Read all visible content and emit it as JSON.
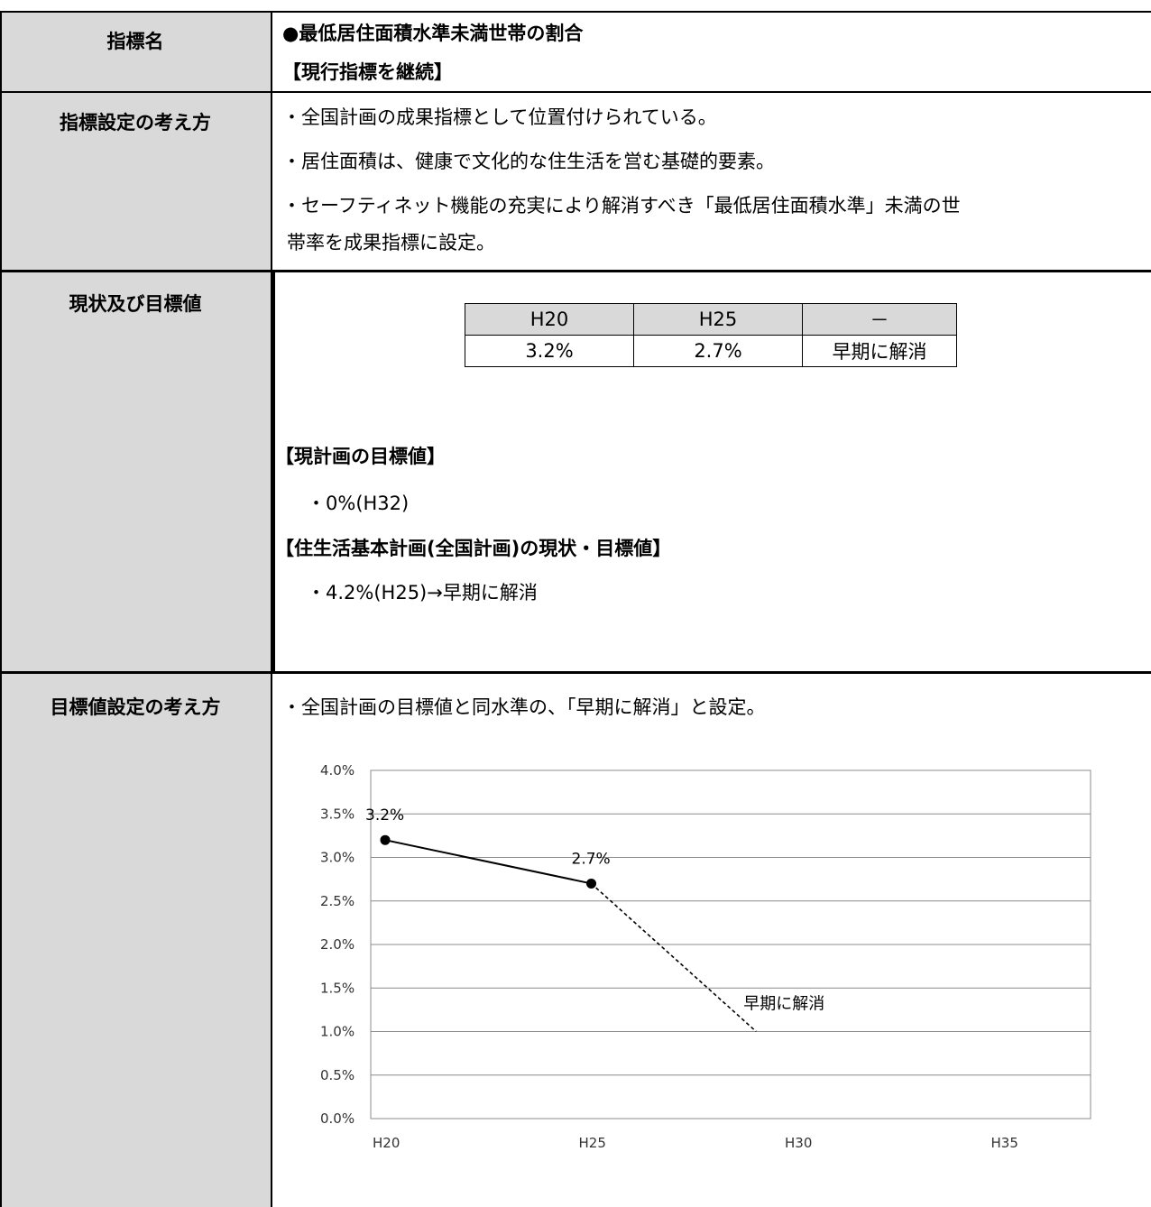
{
  "rows": {
    "indicator": {
      "label": "指標名",
      "title": "●最低居住面積水準未満世帯の割合",
      "subtitle": "【現行指標を継続】"
    },
    "concept": {
      "label": "指標設定の考え方",
      "lines": [
        "・全国計画の成果指標として位置付けられている。",
        "・居住面積は、健康で文化的な住生活を営む基礎的要素。",
        "・セーフティネット機能の充実により解消すべき「最低居住面積水準」未満の世",
        "帯率を成果指標に設定。"
      ]
    },
    "status": {
      "label": "現状及び目標値",
      "table": {
        "headers": [
          "H20",
          "H25",
          "－"
        ],
        "values": [
          "3.2%",
          "2.7%",
          "早期に解消"
        ]
      },
      "current_plan_heading": "【現計画の目標値】",
      "current_plan_value": "・0%(H32)",
      "national_plan_heading": "【住生活基本計画(全国計画)の現状・目標値】",
      "national_plan_value": "・4.2%(H25)→早期に解消"
    },
    "target_concept": {
      "label": "目標値設定の考え方",
      "line": "・全国計画の目標値と同水準の、「早期に解消」と設定。"
    }
  },
  "chart_data": {
    "type": "line",
    "categories": [
      "H20",
      "H25",
      "H30",
      "H35"
    ],
    "y_ticks": [
      "4.0%",
      "3.5%",
      "3.0%",
      "2.5%",
      "2.0%",
      "1.5%",
      "1.0%",
      "0.5%",
      "0.0%"
    ],
    "ylim": [
      0,
      4.0
    ],
    "grid": true,
    "series": [
      {
        "points": [
          {
            "x": "H20",
            "y": 3.2,
            "label": "3.2%"
          },
          {
            "x": "H25",
            "y": 2.7,
            "label": "2.7%"
          }
        ],
        "style": "solid",
        "color": "#000000"
      },
      {
        "points": [
          {
            "x": "H25",
            "y": 2.7
          },
          {
            "x": "H29",
            "y": 1.0
          }
        ],
        "style": "dashed",
        "color": "#000000"
      }
    ],
    "annotations": [
      "早期に解消"
    ]
  }
}
